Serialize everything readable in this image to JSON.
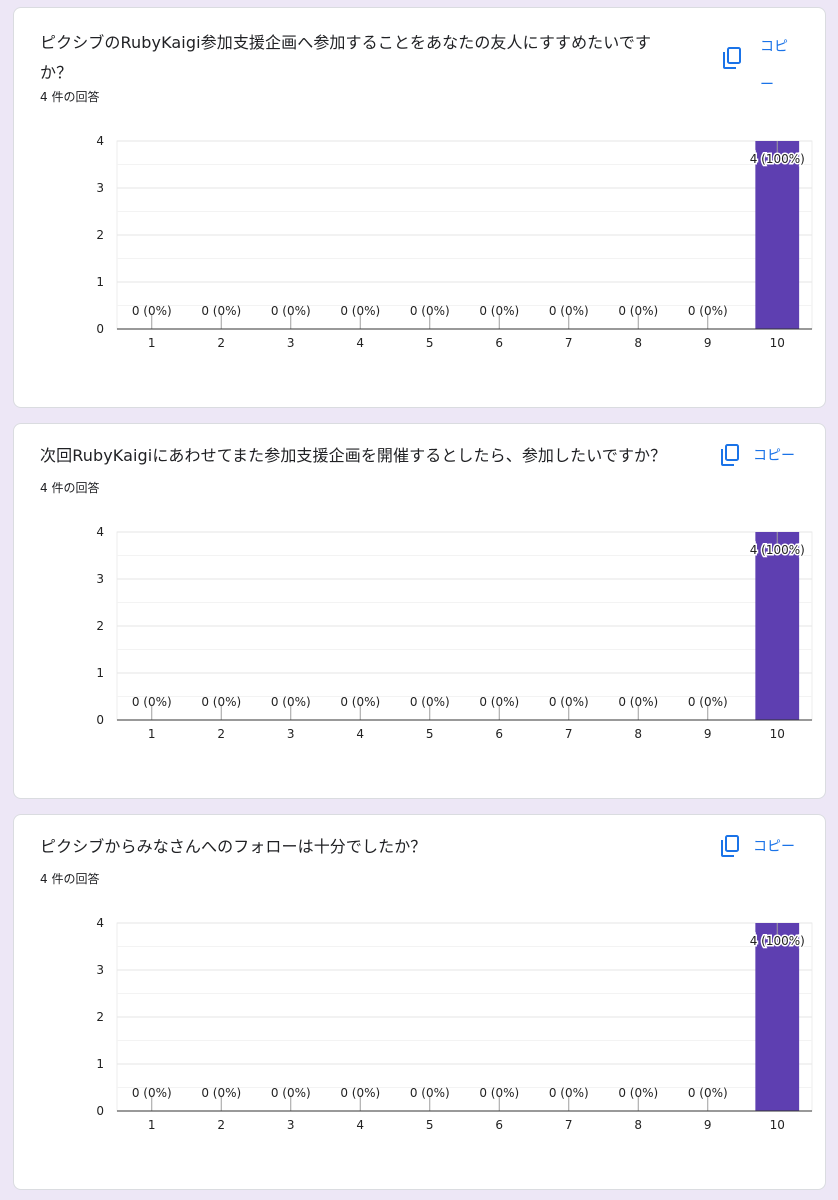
{
  "response_count_label": "4 件の回答",
  "copy_label": "コピー",
  "accent_color": "#5e3fb1",
  "cards": [
    {
      "title": "ピクシブのRubyKaigi参加支援企画へ参加することをあなたの友人にすすめたいですか？"
    },
    {
      "title": "次回RubyKaigiにあわせてまた参加支援企画を開催するとしたら、参加したいですか？"
    },
    {
      "title": "ピクシブからみなさんへのフォローは十分でしたか？"
    }
  ],
  "chart_data": [
    {
      "type": "bar",
      "categories": [
        "1",
        "2",
        "3",
        "4",
        "5",
        "6",
        "7",
        "8",
        "9",
        "10"
      ],
      "values": [
        0,
        0,
        0,
        0,
        0,
        0,
        0,
        0,
        0,
        4
      ],
      "data_labels": [
        "0 (0%)",
        "0 (0%)",
        "0 (0%)",
        "0 (0%)",
        "0 (0%)",
        "0 (0%)",
        "0 (0%)",
        "0 (0%)",
        "0 (0%)",
        "4 (100%)"
      ],
      "yticks": [
        "0",
        "1",
        "2",
        "3",
        "4"
      ],
      "ylim": [
        0,
        4
      ],
      "grid": true
    },
    {
      "type": "bar",
      "categories": [
        "1",
        "2",
        "3",
        "4",
        "5",
        "6",
        "7",
        "8",
        "9",
        "10"
      ],
      "values": [
        0,
        0,
        0,
        0,
        0,
        0,
        0,
        0,
        0,
        4
      ],
      "data_labels": [
        "0 (0%)",
        "0 (0%)",
        "0 (0%)",
        "0 (0%)",
        "0 (0%)",
        "0 (0%)",
        "0 (0%)",
        "0 (0%)",
        "0 (0%)",
        "4 (100%)"
      ],
      "yticks": [
        "0",
        "1",
        "2",
        "3",
        "4"
      ],
      "ylim": [
        0,
        4
      ],
      "grid": true
    },
    {
      "type": "bar",
      "categories": [
        "1",
        "2",
        "3",
        "4",
        "5",
        "6",
        "7",
        "8",
        "9",
        "10"
      ],
      "values": [
        0,
        0,
        0,
        0,
        0,
        0,
        0,
        0,
        0,
        4
      ],
      "data_labels": [
        "0 (0%)",
        "0 (0%)",
        "0 (0%)",
        "0 (0%)",
        "0 (0%)",
        "0 (0%)",
        "0 (0%)",
        "0 (0%)",
        "0 (0%)",
        "4 (100%)"
      ],
      "yticks": [
        "0",
        "1",
        "2",
        "3",
        "4"
      ],
      "ylim": [
        0,
        4
      ],
      "grid": true
    }
  ]
}
